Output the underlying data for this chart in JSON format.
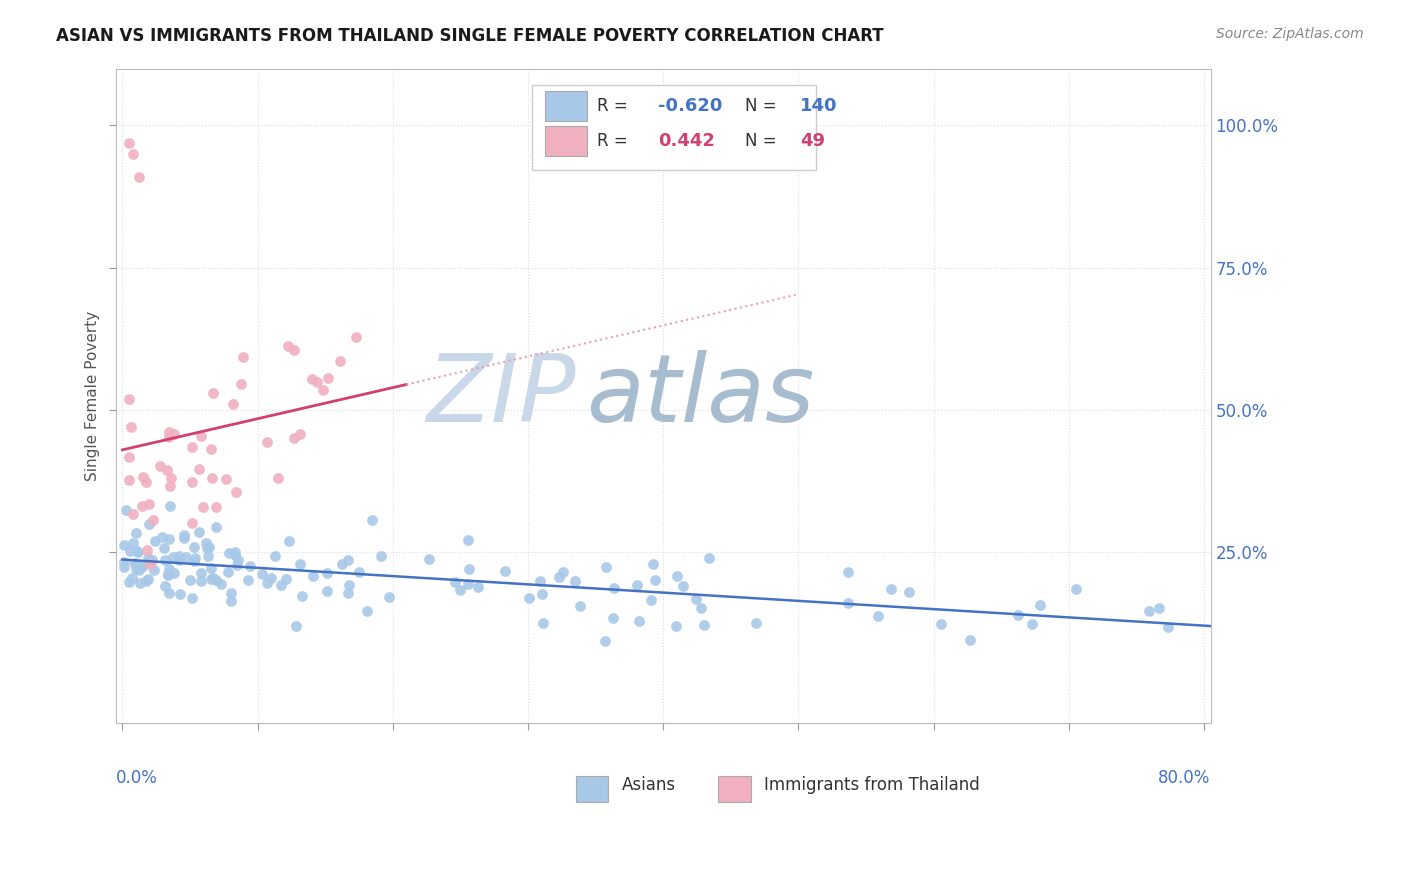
{
  "title": "ASIAN VS IMMIGRANTS FROM THAILAND SINGLE FEMALE POVERTY CORRELATION CHART",
  "source": "Source: ZipAtlas.com",
  "ylabel": "Single Female Poverty",
  "blue_R": -0.62,
  "blue_N": 140,
  "pink_R": 0.442,
  "pink_N": 49,
  "blue_color": "#a8c8e8",
  "blue_line_color": "#4472c4",
  "pink_color": "#f0b0c0",
  "pink_line_color": "#d04070",
  "pink_dashed_color": "#e8a0b0",
  "watermark_zip_color": "#c8d8e8",
  "watermark_atlas_color": "#a8bcd0",
  "background_color": "#ffffff",
  "grid_color": "#dddddd",
  "ytick_color": "#4472c4",
  "xtick_color": "#4472c4",
  "seed": 12345
}
